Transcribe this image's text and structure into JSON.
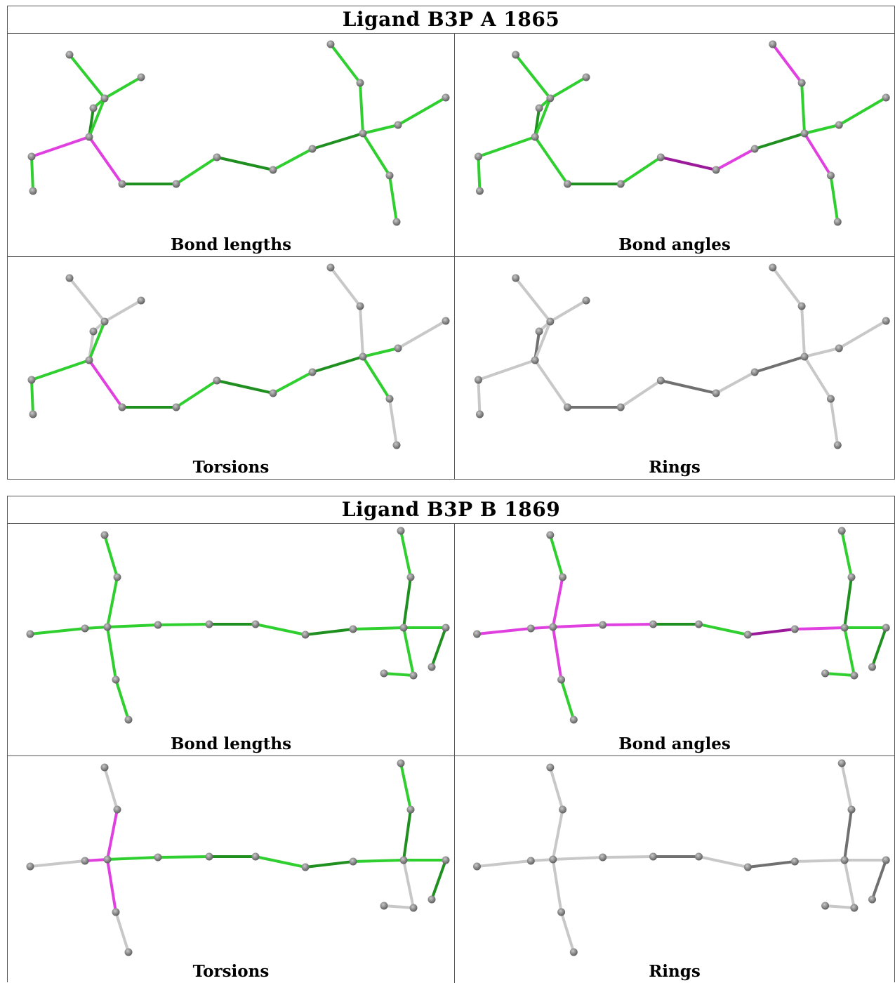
{
  "colors": {
    "ok_bond": "#2fcf2f",
    "ok_bond_dark": "#1f8f1f",
    "outlier_bond": "#e040e0",
    "outlier_bond_dark": "#9a1a9a",
    "no_data_bond": "#c8c8c8",
    "no_data_bond_dark": "#707070",
    "atom": "#7a7a7a"
  },
  "ligands": [
    {
      "title": "Ligand B3P A 1865",
      "panels": [
        {
          "caption": "Bond lengths",
          "mode": "lengths"
        },
        {
          "caption": "Bond angles",
          "mode": "angles"
        },
        {
          "caption": "Torsions",
          "mode": "torsions"
        },
        {
          "caption": "Rings",
          "mode": "rings"
        }
      ]
    },
    {
      "title": "Ligand B3P B 1869",
      "panels": [
        {
          "caption": "Bond lengths",
          "mode": "lengths"
        },
        {
          "caption": "Bond angles",
          "mode": "angles"
        },
        {
          "caption": "Torsions",
          "mode": "torsions"
        },
        {
          "caption": "Rings",
          "mode": "rings"
        }
      ]
    }
  ]
}
